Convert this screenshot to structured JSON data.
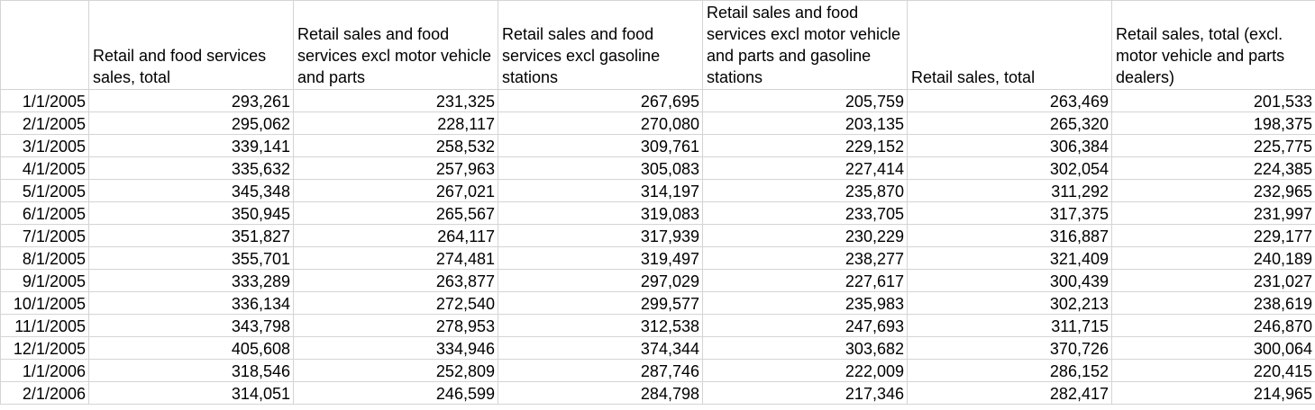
{
  "columns": [
    "",
    "Retail and food services sales, total",
    "Retail sales and food services excl motor vehicle and parts",
    "Retail sales and food services excl gasoline stations",
    "Retail sales and food services excl motor vehicle and parts and gasoline stations",
    "Retail sales, total",
    "Retail sales, total (excl. motor vehicle and parts dealers)"
  ],
  "rows": [
    [
      "1/1/2005",
      "293,261",
      "231,325",
      "267,695",
      "205,759",
      "263,469",
      "201,533"
    ],
    [
      "2/1/2005",
      "295,062",
      "228,117",
      "270,080",
      "203,135",
      "265,320",
      "198,375"
    ],
    [
      "3/1/2005",
      "339,141",
      "258,532",
      "309,761",
      "229,152",
      "306,384",
      "225,775"
    ],
    [
      "4/1/2005",
      "335,632",
      "257,963",
      "305,083",
      "227,414",
      "302,054",
      "224,385"
    ],
    [
      "5/1/2005",
      "345,348",
      "267,021",
      "314,197",
      "235,870",
      "311,292",
      "232,965"
    ],
    [
      "6/1/2005",
      "350,945",
      "265,567",
      "319,083",
      "233,705",
      "317,375",
      "231,997"
    ],
    [
      "7/1/2005",
      "351,827",
      "264,117",
      "317,939",
      "230,229",
      "316,887",
      "229,177"
    ],
    [
      "8/1/2005",
      "355,701",
      "274,481",
      "319,497",
      "238,277",
      "321,409",
      "240,189"
    ],
    [
      "9/1/2005",
      "333,289",
      "263,877",
      "297,029",
      "227,617",
      "300,439",
      "231,027"
    ],
    [
      "10/1/2005",
      "336,134",
      "272,540",
      "299,577",
      "235,983",
      "302,213",
      "238,619"
    ],
    [
      "11/1/2005",
      "343,798",
      "278,953",
      "312,538",
      "247,693",
      "311,715",
      "246,870"
    ],
    [
      "12/1/2005",
      "405,608",
      "334,946",
      "374,344",
      "303,682",
      "370,726",
      "300,064"
    ],
    [
      "1/1/2006",
      "318,546",
      "252,809",
      "287,746",
      "222,009",
      "286,152",
      "220,415"
    ],
    [
      "2/1/2006",
      "314,051",
      "246,599",
      "284,798",
      "217,346",
      "282,417",
      "214,965"
    ]
  ],
  "colors": {
    "gridline": "#d4d4d4",
    "background": "#ffffff",
    "text": "#000000"
  }
}
